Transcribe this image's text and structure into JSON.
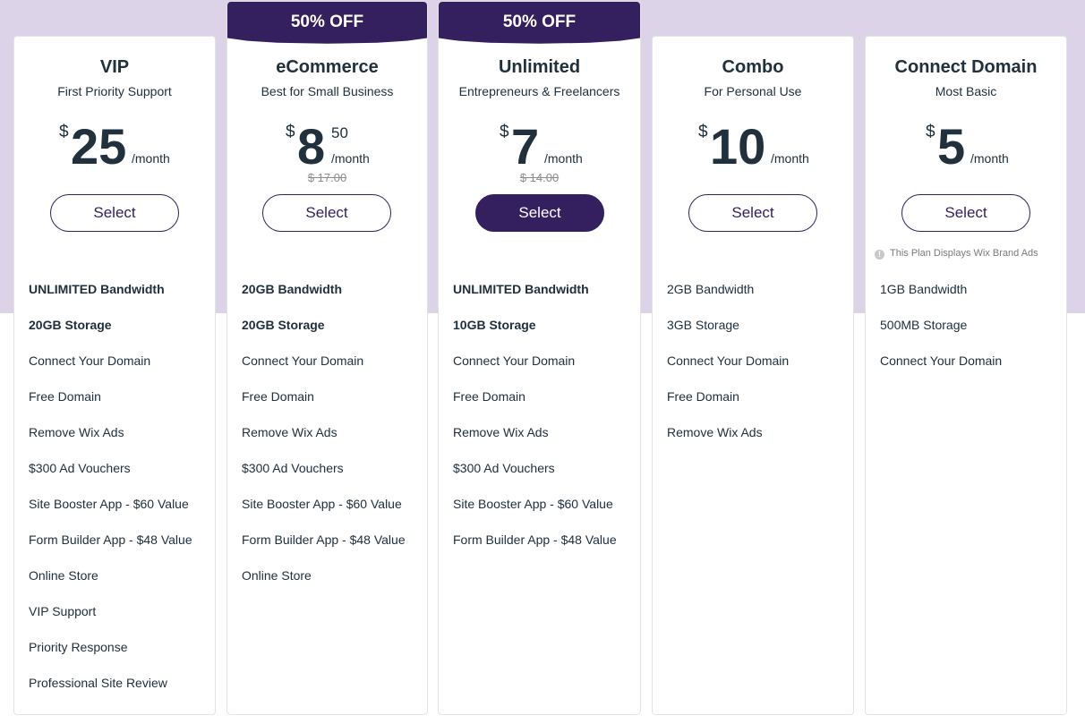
{
  "colors": {
    "accent": "#34205f",
    "band": "#dcd3e8",
    "text": "#20303c",
    "muted": "#8c8c8c"
  },
  "plans": [
    {
      "name": "VIP",
      "subtitle": "First Priority Support",
      "currency": "$",
      "amount": "25",
      "cents": "",
      "per": "/month",
      "old_price": "",
      "ribbon": "",
      "button": "Select",
      "button_primary": false,
      "note": "",
      "features": [
        {
          "text": "UNLIMITED Bandwidth",
          "bold": true
        },
        {
          "text": "20GB Storage",
          "bold": true
        },
        {
          "text": "Connect Your Domain",
          "bold": false
        },
        {
          "text": "Free Domain",
          "bold": false
        },
        {
          "text": "Remove Wix Ads",
          "bold": false
        },
        {
          "text": "$300 Ad Vouchers",
          "bold": false
        },
        {
          "text": "Site Booster App - $60 Value",
          "bold": false
        },
        {
          "text": "Form Builder App - $48 Value",
          "bold": false
        },
        {
          "text": "Online Store",
          "bold": false
        },
        {
          "text": "VIP Support",
          "bold": false
        },
        {
          "text": "Priority Response",
          "bold": false
        },
        {
          "text": "Professional Site Review",
          "bold": false
        }
      ]
    },
    {
      "name": "eCommerce",
      "subtitle": "Best for Small Business",
      "currency": "$",
      "amount": "8",
      "cents": "50",
      "per": "/month",
      "old_price": "$ 17.00",
      "ribbon": "50% OFF",
      "button": "Select",
      "button_primary": false,
      "note": "",
      "features": [
        {
          "text": "20GB Bandwidth",
          "bold": true
        },
        {
          "text": "20GB Storage",
          "bold": true
        },
        {
          "text": "Connect Your Domain",
          "bold": false
        },
        {
          "text": "Free Domain",
          "bold": false
        },
        {
          "text": "Remove Wix Ads",
          "bold": false
        },
        {
          "text": "$300 Ad Vouchers",
          "bold": false
        },
        {
          "text": "Site Booster App - $60 Value",
          "bold": false
        },
        {
          "text": "Form Builder App - $48 Value",
          "bold": false
        },
        {
          "text": "Online Store",
          "bold": false
        }
      ]
    },
    {
      "name": "Unlimited",
      "subtitle": "Entrepreneurs & Freelancers",
      "currency": "$",
      "amount": "7",
      "cents": "",
      "per": "/month",
      "old_price": "$ 14.00",
      "ribbon": "50% OFF",
      "button": "Select",
      "button_primary": true,
      "note": "",
      "features": [
        {
          "text": "UNLIMITED Bandwidth",
          "bold": true
        },
        {
          "text": "10GB Storage",
          "bold": true
        },
        {
          "text": "Connect Your Domain",
          "bold": false
        },
        {
          "text": "Free Domain",
          "bold": false
        },
        {
          "text": "Remove Wix Ads",
          "bold": false
        },
        {
          "text": "$300 Ad Vouchers",
          "bold": false
        },
        {
          "text": "Site Booster App - $60 Value",
          "bold": false
        },
        {
          "text": "Form Builder App - $48 Value",
          "bold": false
        }
      ]
    },
    {
      "name": "Combo",
      "subtitle": "For Personal Use",
      "currency": "$",
      "amount": "10",
      "cents": "",
      "per": "/month",
      "old_price": "",
      "ribbon": "",
      "button": "Select",
      "button_primary": false,
      "note": "",
      "features": [
        {
          "text": "2GB Bandwidth",
          "bold": false
        },
        {
          "text": "3GB Storage",
          "bold": false
        },
        {
          "text": "Connect Your Domain",
          "bold": false
        },
        {
          "text": "Free Domain",
          "bold": false
        },
        {
          "text": "Remove Wix Ads",
          "bold": false
        }
      ]
    },
    {
      "name": "Connect Domain",
      "subtitle": "Most Basic",
      "currency": "$",
      "amount": "5",
      "cents": "",
      "per": "/month",
      "old_price": "",
      "ribbon": "",
      "button": "Select",
      "button_primary": false,
      "note": "This Plan Displays Wix Brand Ads",
      "features": [
        {
          "text": "1GB Bandwidth",
          "bold": false
        },
        {
          "text": "500MB Storage",
          "bold": false
        },
        {
          "text": "Connect Your Domain",
          "bold": false
        }
      ]
    }
  ]
}
